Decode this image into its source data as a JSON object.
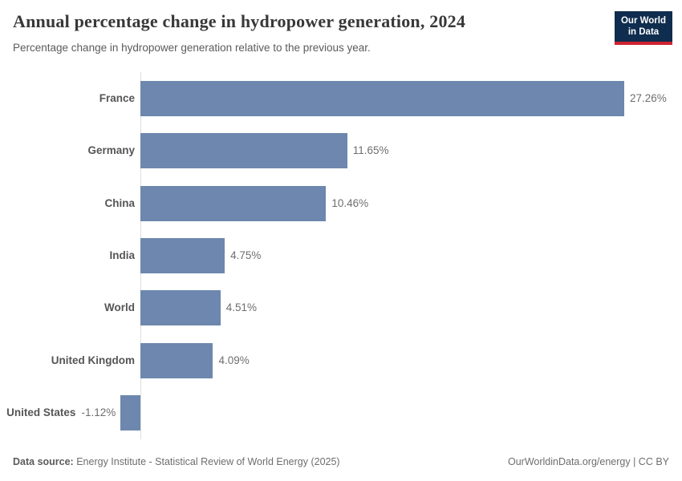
{
  "header": {
    "title": "Annual percentage change in hydropower generation, 2024",
    "subtitle": "Percentage change in hydropower generation relative to the previous year."
  },
  "logo": {
    "line1": "Our World",
    "line2": "in Data",
    "bg_color": "#0f2d4e",
    "accent_color": "#cf2331"
  },
  "chart_data": {
    "type": "bar",
    "orientation": "horizontal",
    "title": "Annual percentage change in hydropower generation, 2024",
    "categories": [
      "France",
      "Germany",
      "China",
      "India",
      "World",
      "United Kingdom",
      "United States"
    ],
    "values": [
      27.26,
      11.65,
      10.46,
      4.75,
      4.51,
      4.09,
      -1.12
    ],
    "value_labels": [
      "27.26%",
      "11.65%",
      "10.46%",
      "4.75%",
      "4.51%",
      "4.09%",
      "-1.12%"
    ],
    "xlabel": "",
    "ylabel": "",
    "xlim": [
      -1.12,
      27.26
    ],
    "grid": false,
    "legend": false,
    "bar_color": "#6d87ae",
    "axis_color": "#dedede"
  },
  "footer": {
    "data_source_label": "Data source:",
    "data_source_text": " Energy Institute - Statistical Review of World Energy (2025)",
    "credit": "OurWorldinData.org/energy | CC BY"
  }
}
